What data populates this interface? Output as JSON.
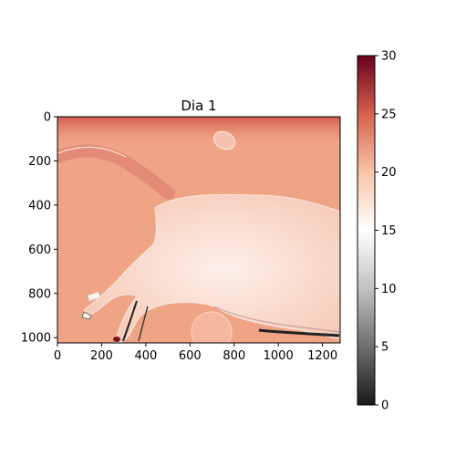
{
  "chart_data": {
    "type": "heatmap",
    "title": "Dia 1",
    "xlabel": "",
    "ylabel": "",
    "image_width": 1280,
    "image_height": 1024,
    "x_ticks": [
      0,
      200,
      400,
      600,
      800,
      1000,
      1200
    ],
    "y_ticks": [
      0,
      200,
      400,
      600,
      800,
      1000
    ],
    "colorbar": {
      "colormap": "RdGy_r",
      "vmin": 0,
      "vmax": 30,
      "ticks": [
        0,
        5,
        10,
        15,
        20,
        25,
        30
      ],
      "stops": [
        {
          "value": 0,
          "color": "#1a1a1a"
        },
        {
          "value": 5,
          "color": "#6e6e6e"
        },
        {
          "value": 10,
          "color": "#c2c2c2"
        },
        {
          "value": 15,
          "color": "#ffffff"
        },
        {
          "value": 20,
          "color": "#f9c4a7"
        },
        {
          "value": 25,
          "color": "#d6604d"
        },
        {
          "value": 30,
          "color": "#67001f"
        }
      ]
    },
    "colors": {
      "background": "#f0a486",
      "body": "#fbe6dc",
      "top_band": "#d86a59",
      "tail": "#e7907c",
      "edge_dark": "#222222"
    }
  }
}
